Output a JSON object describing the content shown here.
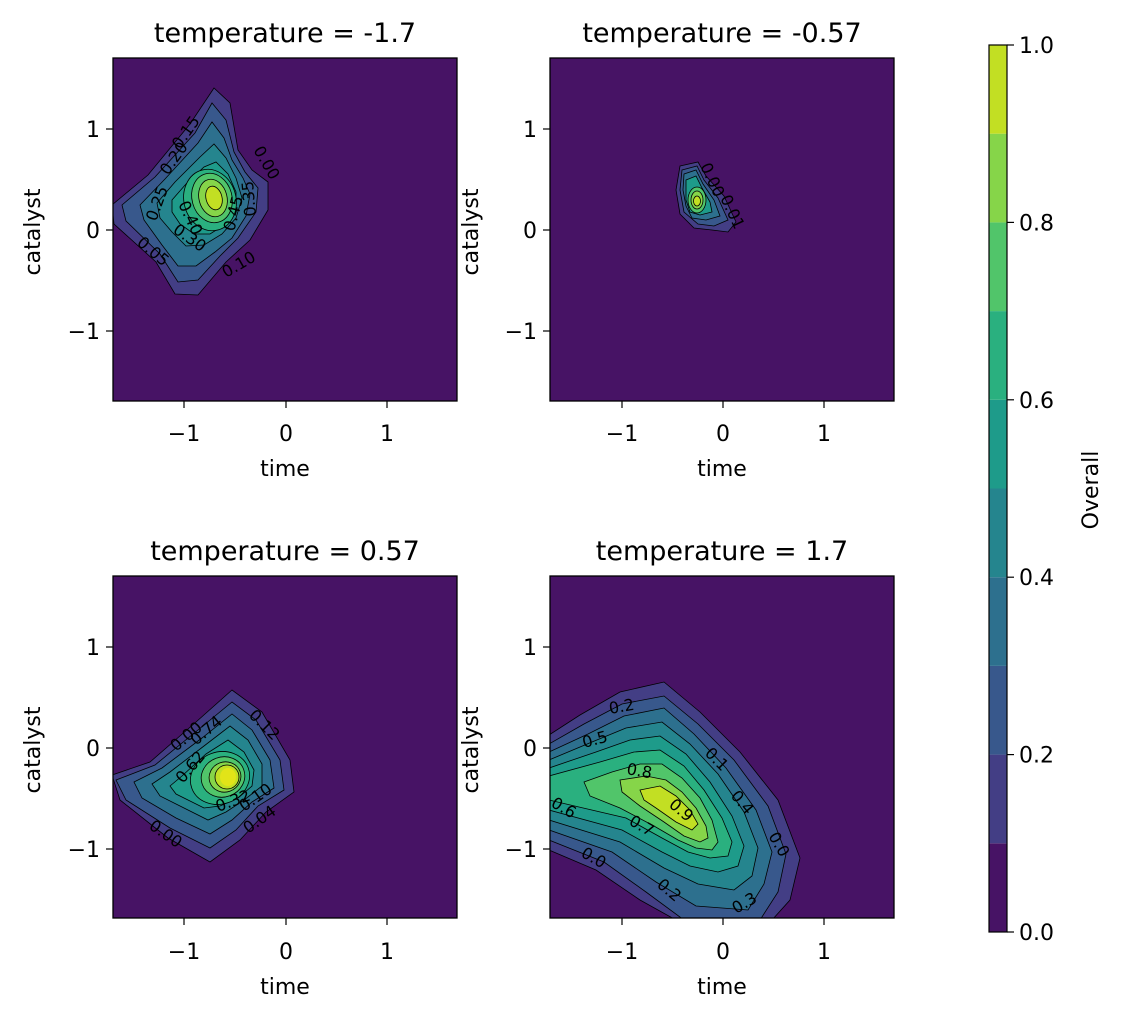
{
  "chart_data": {
    "type": "contour",
    "colormap": "viridis",
    "colorbar": {
      "label": "Overall",
      "ticks": [
        "0.0",
        "0.2",
        "0.4",
        "0.6",
        "0.8",
        "1.0"
      ],
      "levels": [
        0.0,
        0.1,
        0.2,
        0.3,
        0.4,
        0.5,
        0.6,
        0.7,
        0.8,
        0.9,
        1.0
      ],
      "colors": [
        "#471365",
        "#433e85",
        "#38588c",
        "#2d708e",
        "#25858e",
        "#1e9b8a",
        "#2ab07f",
        "#51c56a",
        "#86d549",
        "#c2df23",
        "#e2e418"
      ]
    },
    "panels": [
      {
        "title": "temperature = -1.7",
        "xlabel": "time",
        "ylabel": "catalyst",
        "xlim": [
          -1.7,
          1.7
        ],
        "ylim": [
          -1.7,
          1.7
        ],
        "xticks": [
          "−1",
          "0",
          "1"
        ],
        "yticks": [
          "−1",
          "0",
          "1"
        ],
        "peak": {
          "x": -0.72,
          "y": 0.3,
          "value": 0.98
        },
        "contour_labels": [
          "0.15",
          "0.20",
          "0.25",
          "0.40",
          "0.45",
          "0.35",
          "0.30",
          "0.05",
          "0.10",
          "0.00"
        ]
      },
      {
        "title": "temperature = -0.57",
        "xlabel": "time",
        "ylabel": "catalyst",
        "xlim": [
          -1.7,
          1.7
        ],
        "ylim": [
          -1.7,
          1.7
        ],
        "xticks": [
          "−1",
          "0",
          "1"
        ],
        "yticks": [
          "−1",
          "0",
          "1"
        ],
        "peak": {
          "x": -0.3,
          "y": 0.28,
          "value": 0.98
        },
        "contour_labels": [
          "0.00",
          "0.01"
        ]
      },
      {
        "title": "temperature = 0.57",
        "xlabel": "time",
        "ylabel": "catalyst",
        "xlim": [
          -1.7,
          1.7
        ],
        "ylim": [
          -1.7,
          1.7
        ],
        "xticks": [
          "−1",
          "0",
          "1"
        ],
        "yticks": [
          "−1",
          "0",
          "1"
        ],
        "peak": {
          "x": -0.55,
          "y": -0.3,
          "value": 0.98
        },
        "contour_labels": [
          "0.00",
          "0.74",
          "0.62",
          "0.32",
          "0.10",
          "0.04",
          "0.12",
          "0.00"
        ]
      },
      {
        "title": "temperature = 1.7",
        "xlabel": "time",
        "ylabel": "catalyst",
        "xlim": [
          -1.7,
          1.7
        ],
        "ylim": [
          -1.7,
          1.7
        ],
        "xticks": [
          "−1",
          "0",
          "1"
        ],
        "yticks": [
          "−1",
          "0",
          "1"
        ],
        "peak": {
          "x": -0.45,
          "y": -0.6,
          "value": 0.95
        },
        "contour_labels": [
          "0.2",
          "0.5",
          "0.8",
          "0.9",
          "0.7",
          "0.6",
          "0.1",
          "0.4",
          "0.0",
          "0.0",
          "0.2",
          "0.3"
        ]
      }
    ]
  }
}
